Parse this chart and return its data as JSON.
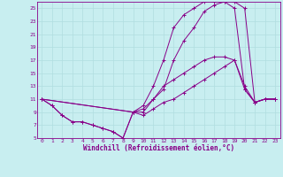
{
  "background_color": "#c8eef0",
  "grid_color": "#b0dde0",
  "line_color": "#880088",
  "marker": "+",
  "xlabel": "Windchill (Refroidissement éolien,°C)",
  "xlim": [
    -0.5,
    23.5
  ],
  "ylim": [
    5,
    26
  ],
  "yticks": [
    5,
    7,
    9,
    11,
    13,
    15,
    17,
    19,
    21,
    23,
    25
  ],
  "xticks": [
    0,
    1,
    2,
    3,
    4,
    5,
    6,
    7,
    8,
    9,
    10,
    11,
    12,
    13,
    14,
    15,
    16,
    17,
    18,
    19,
    20,
    21,
    22,
    23
  ],
  "series": [
    {
      "x": [
        0,
        1,
        2,
        3,
        4,
        5,
        6,
        7,
        8,
        9,
        10,
        11,
        12,
        13,
        14,
        15,
        16,
        17,
        18,
        19,
        20,
        21,
        22,
        23
      ],
      "y": [
        11,
        10,
        8.5,
        7.5,
        7.5,
        7,
        6.5,
        6,
        5,
        9,
        8.5,
        9.5,
        10.5,
        11,
        12,
        13,
        14,
        15,
        16,
        17,
        13,
        10.5,
        11,
        11
      ]
    },
    {
      "x": [
        0,
        1,
        2,
        3,
        4,
        5,
        6,
        7,
        8,
        9,
        10,
        11,
        12,
        13,
        14,
        15,
        16,
        17,
        18,
        19,
        20,
        21,
        22,
        23
      ],
      "y": [
        11,
        10,
        8.5,
        7.5,
        7.5,
        7,
        6.5,
        6,
        5,
        9,
        9,
        11,
        12.5,
        17,
        20,
        22,
        24.5,
        25.5,
        26,
        26,
        25,
        10.5,
        11,
        11
      ]
    },
    {
      "x": [
        0,
        9,
        10,
        11,
        12,
        13,
        14,
        15,
        16,
        17,
        18,
        19,
        20,
        21,
        22,
        23
      ],
      "y": [
        11,
        9,
        10,
        13,
        17,
        22,
        24,
        25,
        26,
        26,
        26,
        25,
        12.5,
        10.5,
        11,
        11
      ]
    },
    {
      "x": [
        0,
        9,
        10,
        11,
        12,
        13,
        14,
        15,
        16,
        17,
        18,
        19,
        20,
        21,
        22,
        23
      ],
      "y": [
        11,
        9,
        9.5,
        11,
        13,
        14,
        15,
        16,
        17,
        17.5,
        17.5,
        17,
        12.5,
        10.5,
        11,
        11
      ]
    }
  ]
}
